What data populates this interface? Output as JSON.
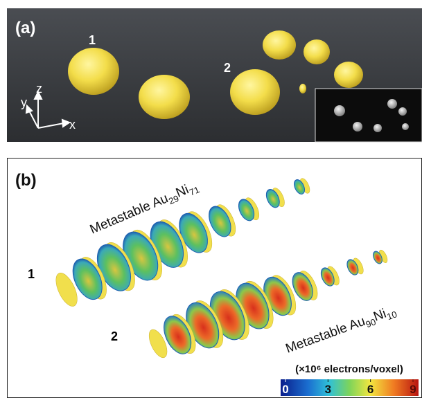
{
  "panel_a": {
    "label": "(a)",
    "particle_labels": [
      "1",
      "2"
    ],
    "axes": [
      "y",
      "z",
      "x"
    ]
  },
  "panel_b": {
    "label": "(b)",
    "row_labels": [
      "1",
      "2"
    ],
    "row_titles": [
      {
        "text": "Metastable Au",
        "sub1": "29",
        "el2": "Ni",
        "sub2": "71"
      },
      {
        "text": "Metastable Au",
        "sub1": "90",
        "el2": "Ni",
        "sub2": "10"
      }
    ],
    "colorbar": {
      "title": "(×10⁶ electrons/voxel)",
      "lim": [
        0,
        9
      ],
      "ticks": [
        0,
        3,
        6,
        9
      ]
    }
  }
}
